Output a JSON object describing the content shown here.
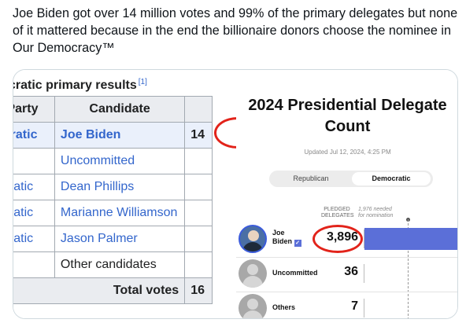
{
  "tweet": {
    "text": "Joe Biden got over 14 million votes and 99% of the primary delegates but none of it mattered because in the end the billionaire donors choose the nominee in Our Democracy™"
  },
  "wiki": {
    "title": "cratic primary results",
    "ref": "[1]",
    "headers": {
      "party": "Party",
      "candidate": "Candidate"
    },
    "rows": [
      {
        "party": "ocratic",
        "candidate": "Joe Biden",
        "votes": "14"
      },
      {
        "party": "",
        "candidate": "Uncommitted",
        "votes": ""
      },
      {
        "party": "ocratic",
        "candidate": "Dean Phillips",
        "votes": ""
      },
      {
        "party": "ocratic",
        "candidate": "Marianne Williamson",
        "votes": ""
      },
      {
        "party": "ocratic",
        "candidate": "Jason Palmer",
        "votes": ""
      },
      {
        "party": "",
        "candidate": "Other candidates",
        "votes": ""
      }
    ],
    "total_label": "Total votes",
    "total_value": "16"
  },
  "count": {
    "title_line1": "2024 Presidential Delegate",
    "title_line2": "Count",
    "updated": "Updated Jul 12, 2024, 4:25 PM",
    "toggle": {
      "republican": "Republican",
      "democratic": "Democratic"
    },
    "pledged_label_1": "PLEDGED",
    "pledged_label_2": "DELEGATES",
    "needed_label_1": "1,976 needed",
    "needed_label_2": "for nomination",
    "rows": [
      {
        "name_1": "Joe",
        "name_2": "Biden",
        "check": "✓",
        "value": "3,896",
        "fill": 1.0
      },
      {
        "name_1": "Uncommitted",
        "value": "36"
      },
      {
        "name_1": "Others",
        "value": "7"
      }
    ]
  },
  "colors": {
    "accent_blue": "#5b6fd8",
    "link_blue": "#3366cc",
    "annotation_red": "#e2231a"
  }
}
